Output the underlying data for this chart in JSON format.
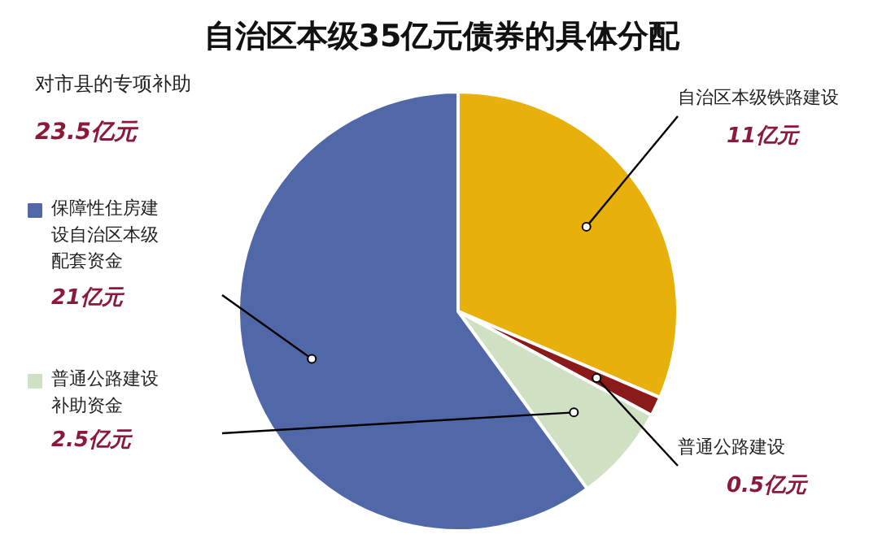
{
  "chart_data": {
    "type": "pie",
    "title": "自治区本级35亿元债券的具体分配",
    "categories": [
      "自治区本级铁路建设",
      "普通公路建设",
      "普通公路建设补助资金",
      "保障性住房建设自治区本级配套资金"
    ],
    "values": [
      11,
      0.5,
      2.5,
      21
    ],
    "colors": [
      "#e8b00a",
      "#8b1a1a",
      "#cfe0c3",
      "#5068a8"
    ],
    "value_labels": [
      "11亿元",
      "0.5亿元",
      "2.5亿元",
      "21亿元"
    ],
    "legend": "left",
    "annotations": [
      "对市县的专项补助",
      "23.5亿元"
    ]
  }
}
